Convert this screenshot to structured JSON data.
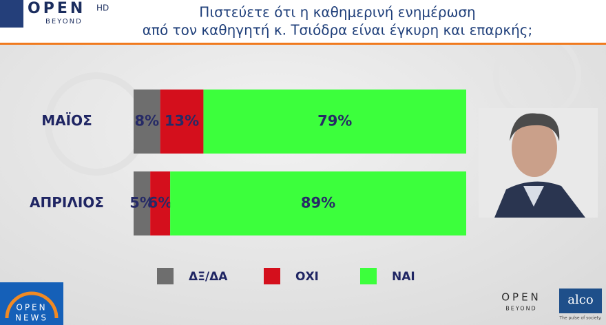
{
  "chart_data": {
    "type": "stacked-barh",
    "title": [
      "Πιστεύετε ότι η καθημερινή ενημέρωση",
      "από τον καθηγητή κ. Τσιόδρα είναι έγκυρη και επαρκής;"
    ],
    "categories": [
      "ΜΑΪΟΣ",
      "ΑΠΡΙΛΙΟΣ"
    ],
    "series": [
      {
        "name": "ΔΞ/ΔΑ",
        "color": "#6e6e6e",
        "values": [
          8,
          5
        ],
        "value_labels": [
          "8%",
          "5%"
        ]
      },
      {
        "name": "ΟΧΙ",
        "color": "#d40f1c",
        "values": [
          13,
          6
        ],
        "value_labels": [
          "13%",
          "6%"
        ]
      },
      {
        "name": "ΝΑΙ",
        "color": "#3cff3c",
        "values": [
          79,
          89
        ],
        "value_labels": [
          "79%",
          "89%"
        ]
      }
    ],
    "xlim": [
      0,
      100
    ]
  },
  "branding": {
    "channel": "OPEN",
    "hd": "HD",
    "tagline": "BEYOND",
    "news_logo": [
      "OPEN",
      "NEWS"
    ],
    "footer_logo": "OPEN",
    "footer_tagline": "BEYOND",
    "pollster": "alco",
    "pollster_tagline": "The pulse of society."
  }
}
